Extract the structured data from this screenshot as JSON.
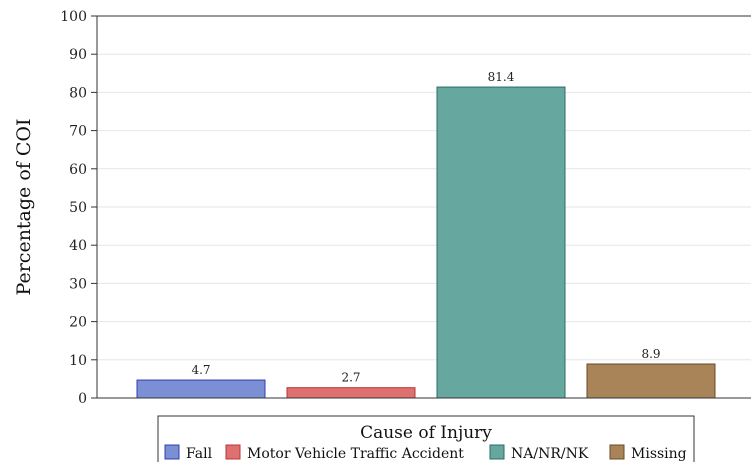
{
  "chart_data": {
    "type": "bar",
    "categories": [
      "Fall",
      "Motor Vehicle Traffic Accident",
      "NA/NR/NK",
      "Missing"
    ],
    "values": [
      4.7,
      2.7,
      81.4,
      8.9
    ],
    "data_labels": [
      "4.7",
      "2.7",
      "81.4",
      "8.9"
    ],
    "colors": [
      "#7b8fd4",
      "#df7070",
      "#66a8a0",
      "#a98458"
    ],
    "stroke_colors": [
      "#3a3ab0",
      "#b03a3a",
      "#2a6b63",
      "#6b4a25"
    ],
    "title": "",
    "xlabel": "",
    "ylabel": "Percentage of COI",
    "ylim": [
      0,
      100
    ],
    "yticks": [
      0,
      10,
      20,
      30,
      40,
      50,
      60,
      70,
      80,
      90,
      100
    ],
    "grid": true,
    "legend": {
      "title": "Cause of Injury",
      "placement": "bottom",
      "entries": [
        "Fall",
        "Motor Vehicle Traffic Accident",
        "NA/NR/NK",
        "Missing"
      ]
    }
  }
}
